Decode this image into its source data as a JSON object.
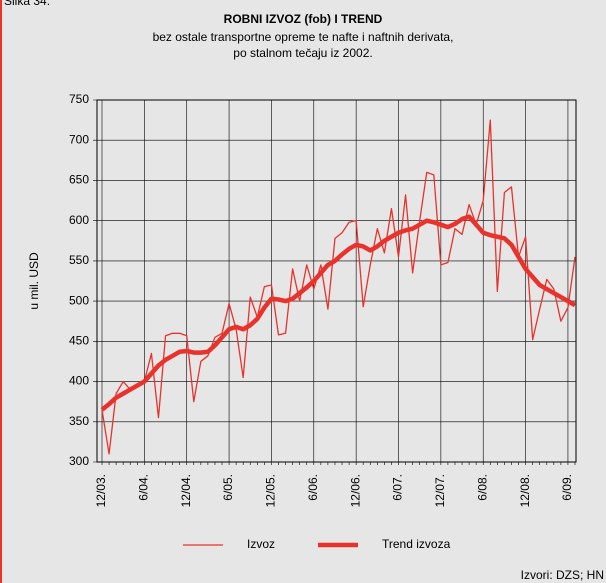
{
  "caption": "Slika 34.",
  "source": "Izvori: DZS; HN",
  "chart_data": {
    "type": "line",
    "title": "ROBNI IZVOZ (fob) I TREND",
    "subtitle": [
      "bez ostale transportne opreme te nafte i naftnih derivata,",
      "po stalnom tečaju iz 2002."
    ],
    "y_label": "u mil. USD",
    "categories": [
      "12/03.",
      null,
      null,
      null,
      null,
      null,
      "6/04.",
      null,
      null,
      null,
      null,
      null,
      "12/04.",
      null,
      null,
      null,
      null,
      null,
      "6/05.",
      null,
      null,
      null,
      null,
      null,
      "12/05.",
      null,
      null,
      null,
      null,
      null,
      "6/06.",
      null,
      null,
      null,
      null,
      null,
      "12/06.",
      null,
      null,
      null,
      null,
      null,
      "6/07.",
      null,
      null,
      null,
      null,
      null,
      "12/07.",
      null,
      null,
      null,
      null,
      null,
      "6/08.",
      null,
      null,
      null,
      null,
      null,
      "12/08.",
      null,
      null,
      null,
      null,
      null,
      "6/09.",
      null
    ],
    "series": [
      {
        "name": "Izvoz",
        "color": "#e8322b",
        "width": 1.3,
        "values": [
          365,
          310,
          385,
          400,
          390,
          395,
          400,
          435,
          355,
          457,
          460,
          460,
          457,
          375,
          425,
          432,
          455,
          460,
          497,
          465,
          405,
          505,
          480,
          518,
          520,
          458,
          460,
          540,
          500,
          545,
          515,
          545,
          490,
          578,
          585,
          598,
          600,
          493,
          545,
          590,
          560,
          615,
          555,
          632,
          535,
          600,
          660,
          657,
          545,
          548,
          590,
          583,
          620,
          595,
          625,
          725,
          512,
          635,
          642,
          555,
          580,
          452,
          490,
          527,
          515,
          475,
          492,
          555
        ]
      },
      {
        "name": "Trend izvoza",
        "color": "#e8322b",
        "width": 4.5,
        "values": [
          365,
          372,
          380,
          385,
          390,
          395,
          400,
          410,
          420,
          427,
          432,
          437,
          438,
          436,
          436,
          437,
          445,
          455,
          465,
          468,
          465,
          470,
          478,
          492,
          503,
          502,
          500,
          503,
          510,
          517,
          525,
          535,
          545,
          550,
          558,
          565,
          570,
          568,
          563,
          568,
          575,
          580,
          585,
          588,
          590,
          595,
          600,
          598,
          595,
          592,
          596,
          602,
          605,
          595,
          585,
          582,
          580,
          578,
          570,
          555,
          540,
          530,
          520,
          515,
          510,
          505,
          500,
          495
        ]
      }
    ],
    "ylim": [
      300,
      750
    ],
    "yticks": [
      300,
      350,
      400,
      450,
      500,
      550,
      600,
      650,
      700,
      750
    ],
    "grid": true,
    "legend": "bottom"
  }
}
